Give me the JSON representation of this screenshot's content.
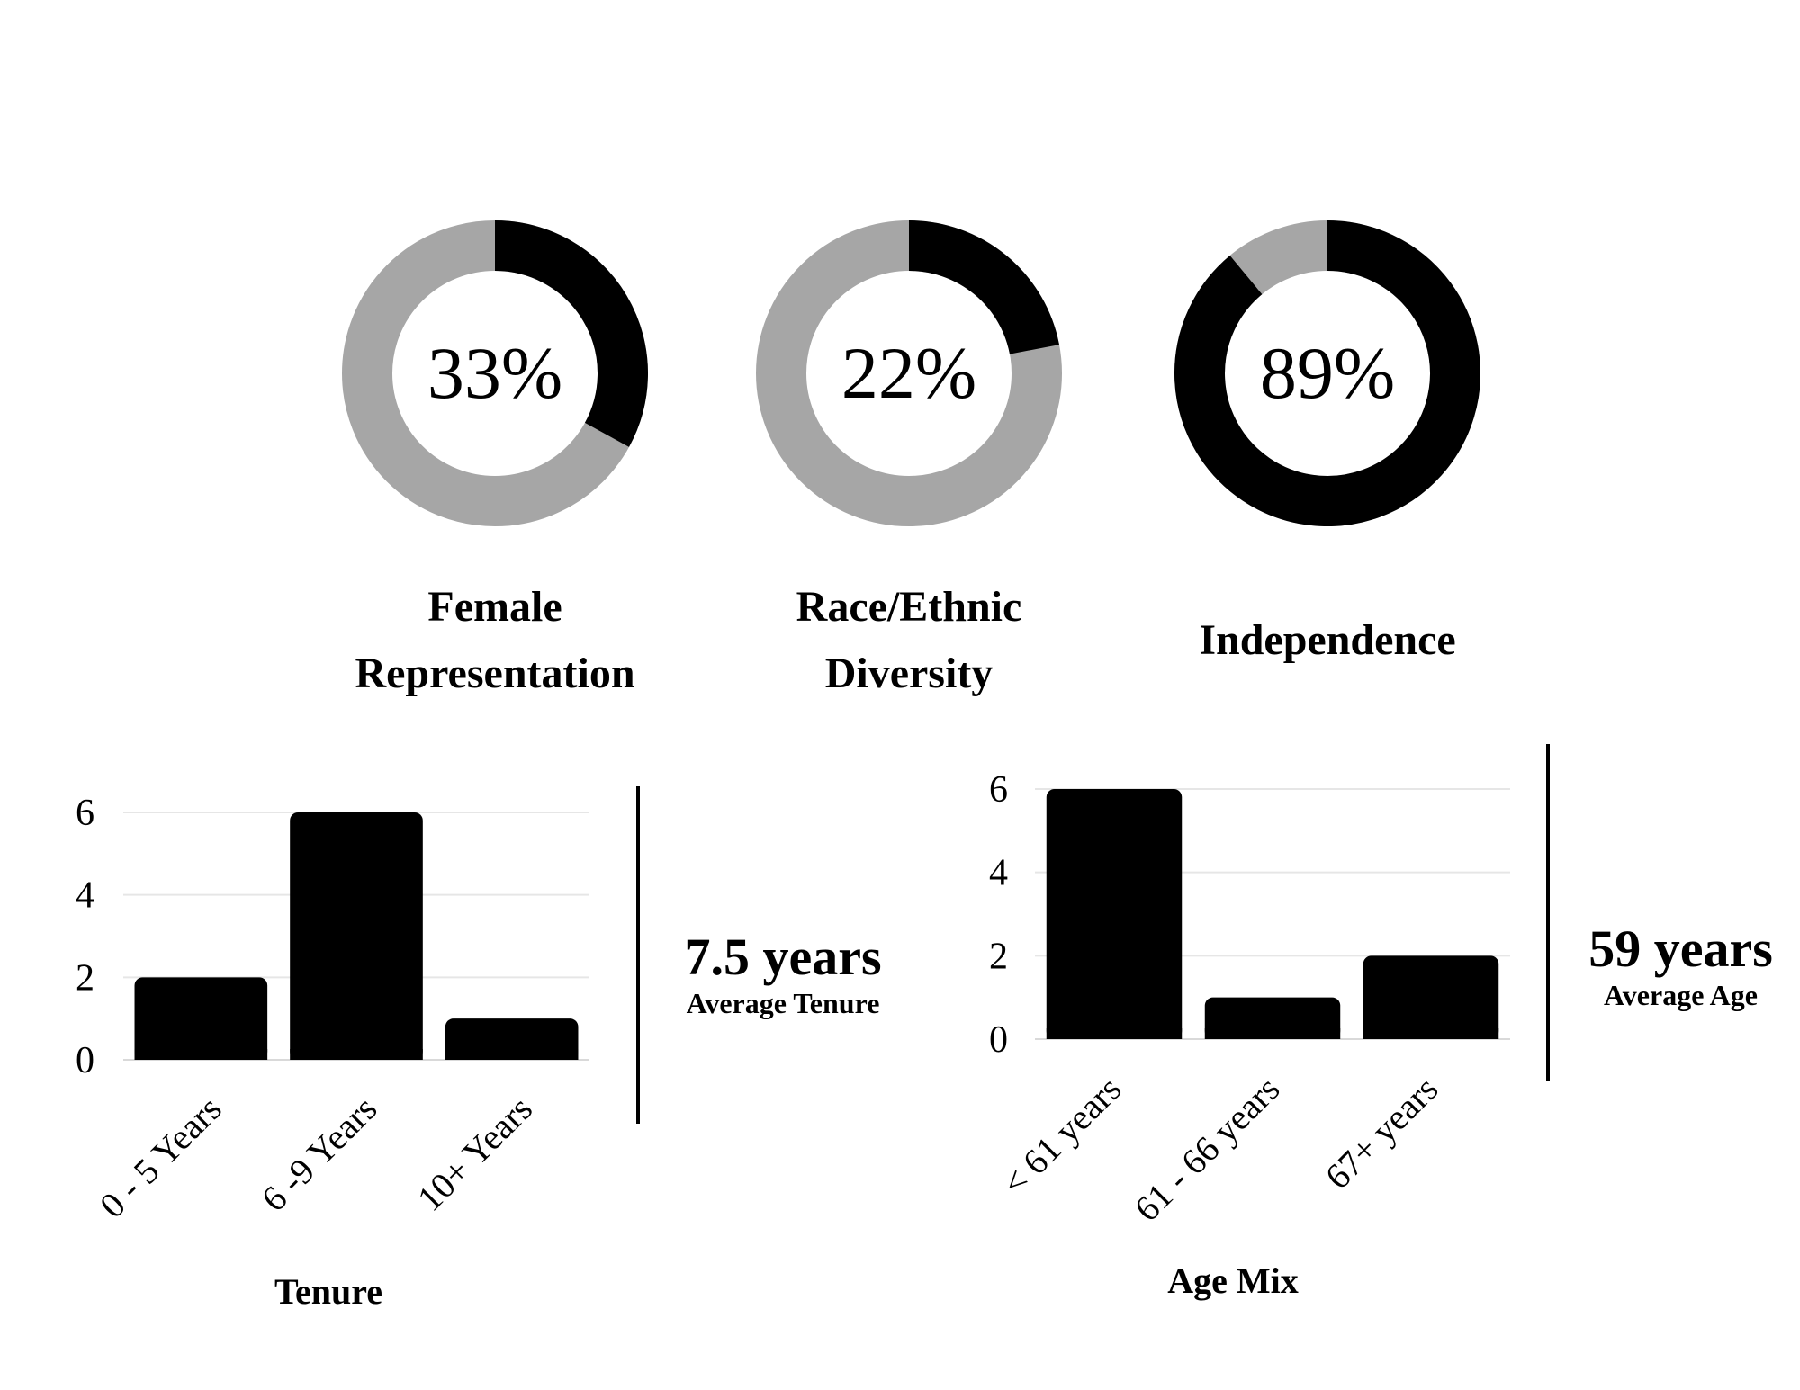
{
  "colors": {
    "filled": "#000000",
    "remainder": "#a6a6a6",
    "grid": "#e6e6e6"
  },
  "donuts": [
    {
      "value_text": "33%",
      "fraction": 0.33,
      "label_lines": [
        "Female",
        "Representation"
      ]
    },
    {
      "value_text": "22%",
      "fraction": 0.22,
      "label_lines": [
        "Race/Ethnic",
        "Diversity"
      ]
    },
    {
      "value_text": "89%",
      "fraction": 0.89,
      "label_lines": [
        "Independence"
      ]
    }
  ],
  "tenure": {
    "avg_value": "7.5 years",
    "avg_caption": "Average Tenure"
  },
  "age": {
    "avg_value": "59 years",
    "avg_caption": "Average Age"
  },
  "chart_data": [
    {
      "type": "bar",
      "title": "Tenure",
      "categories": [
        "0 - 5 Years",
        "6 -9 Years",
        "10+ Years"
      ],
      "values": [
        2,
        6,
        1
      ],
      "yticks": [
        0,
        2,
        4,
        6
      ],
      "ylim": [
        0,
        6
      ],
      "grid": true
    },
    {
      "type": "bar",
      "title": "Age Mix",
      "categories": [
        "< 61 years",
        "61 - 66 years",
        "67+ years"
      ],
      "values": [
        6,
        1,
        2
      ],
      "yticks": [
        0,
        2,
        4,
        6
      ],
      "ylim": [
        0,
        6
      ],
      "grid": true
    }
  ]
}
